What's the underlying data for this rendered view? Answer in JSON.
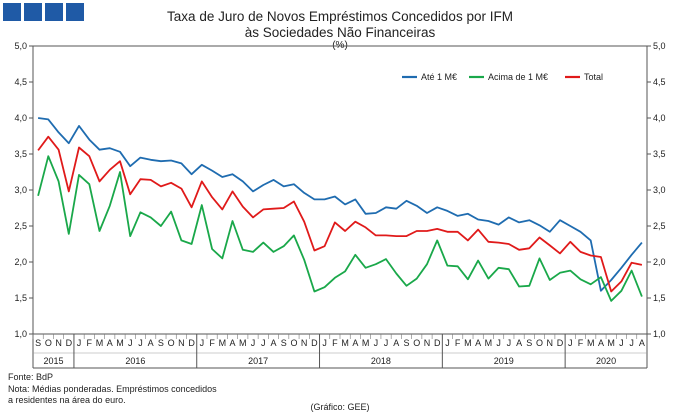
{
  "brand": {
    "color": "#1f5aa6",
    "squares": 4
  },
  "chart_data": {
    "type": "line",
    "title": "Taxa de Juro de Novos Empréstimos  Concedidos por IFM",
    "subtitle": "às Sociedades Não Financeiras",
    "unit_label": "(%)",
    "ylim": [
      1.0,
      5.0
    ],
    "y_ticks": [
      "1,0",
      "1,5",
      "2,0",
      "2,5",
      "3,0",
      "3,5",
      "4,0",
      "4,5",
      "5,0"
    ],
    "grid": false,
    "legend_position": "top-right",
    "x": [
      "S",
      "O",
      "N",
      "D",
      "J",
      "F",
      "M",
      "A",
      "M",
      "J",
      "J",
      "A",
      "S",
      "O",
      "N",
      "D",
      "J",
      "F",
      "M",
      "A",
      "M",
      "J",
      "J",
      "A",
      "S",
      "O",
      "N",
      "D",
      "J",
      "F",
      "M",
      "A",
      "M",
      "J",
      "J",
      "A",
      "S",
      "O",
      "N",
      "D",
      "J",
      "F",
      "M",
      "A",
      "M",
      "J",
      "J",
      "A",
      "S",
      "O",
      "N",
      "D",
      "J",
      "F",
      "M",
      "A",
      "M",
      "J",
      "J",
      "A"
    ],
    "years": [
      {
        "label": "2015",
        "start": 0,
        "end": 3
      },
      {
        "label": "2016",
        "start": 4,
        "end": 15
      },
      {
        "label": "2017",
        "start": 16,
        "end": 27
      },
      {
        "label": "2018",
        "start": 28,
        "end": 39
      },
      {
        "label": "2019",
        "start": 40,
        "end": 51
      },
      {
        "label": "2020",
        "start": 52,
        "end": 59
      }
    ],
    "series": [
      {
        "name": "Até 1 M€",
        "color": "#1f6cb0",
        "values": [
          4.0,
          3.98,
          3.8,
          3.65,
          3.89,
          3.7,
          3.56,
          3.58,
          3.53,
          3.33,
          3.45,
          3.42,
          3.4,
          3.41,
          3.37,
          3.22,
          3.35,
          3.27,
          3.18,
          3.22,
          3.12,
          2.98,
          3.07,
          3.14,
          3.05,
          3.08,
          2.96,
          2.87,
          2.87,
          2.91,
          2.8,
          2.87,
          2.67,
          2.68,
          2.76,
          2.74,
          2.85,
          2.78,
          2.68,
          2.76,
          2.71,
          2.64,
          2.67,
          2.59,
          2.57,
          2.52,
          2.62,
          2.55,
          2.58,
          2.51,
          2.42,
          2.58,
          2.5,
          2.42,
          2.3,
          1.6,
          1.75,
          1.92,
          2.1,
          2.27
        ]
      },
      {
        "name": "Acima de 1 M€",
        "color": "#1aa84a",
        "values": [
          2.92,
          3.47,
          3.12,
          2.39,
          3.21,
          3.08,
          2.43,
          2.78,
          3.25,
          2.36,
          2.69,
          2.62,
          2.5,
          2.7,
          2.3,
          2.25,
          2.79,
          2.18,
          2.05,
          2.57,
          2.17,
          2.14,
          2.27,
          2.14,
          2.22,
          2.37,
          2.03,
          1.59,
          1.65,
          1.78,
          1.87,
          2.1,
          1.92,
          1.97,
          2.04,
          1.84,
          1.67,
          1.77,
          1.97,
          2.3,
          1.95,
          1.94,
          1.76,
          2.02,
          1.77,
          1.92,
          1.9,
          1.66,
          1.67,
          2.05,
          1.75,
          1.85,
          1.88,
          1.76,
          1.69,
          1.79,
          1.46,
          1.6,
          1.88,
          1.52
        ]
      },
      {
        "name": "Total",
        "color": "#e01a1a",
        "values": [
          3.55,
          3.74,
          3.56,
          2.98,
          3.59,
          3.47,
          3.12,
          3.28,
          3.4,
          2.94,
          3.15,
          3.14,
          3.05,
          3.1,
          3.02,
          2.76,
          3.12,
          2.9,
          2.73,
          2.98,
          2.77,
          2.62,
          2.73,
          2.74,
          2.75,
          2.84,
          2.56,
          2.16,
          2.22,
          2.55,
          2.43,
          2.56,
          2.48,
          2.37,
          2.37,
          2.36,
          2.36,
          2.43,
          2.43,
          2.46,
          2.42,
          2.42,
          2.3,
          2.45,
          2.28,
          2.27,
          2.25,
          2.17,
          2.19,
          2.34,
          2.23,
          2.12,
          2.28,
          2.14,
          2.09,
          2.07,
          1.59,
          1.73,
          1.99,
          1.96
        ]
      }
    ]
  },
  "footer": {
    "source": "Fonte: BdP",
    "note1": "Nota: Médias ponderadas.  Empréstimos concedidos",
    "note2": "a residentes na área do euro.",
    "credit": "(Gráfico: GEE)"
  }
}
